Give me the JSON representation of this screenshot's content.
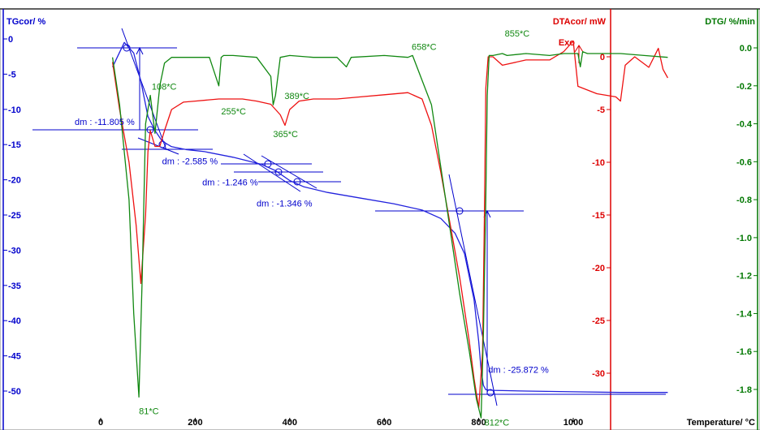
{
  "chart_data": {
    "type": "line",
    "x_axis": {
      "label": "Temperature/ °C",
      "range": [
        -100,
        1230
      ],
      "ticks": [
        0,
        200,
        400,
        600,
        800,
        1000
      ]
    },
    "axes": {
      "tg": {
        "label": "TGcor/ %",
        "color": "#0000cc",
        "range": [
          -53.5,
          3.5
        ],
        "ticks": [
          "0",
          "-5",
          "-10",
          "-15",
          "-20",
          "-25",
          "-30",
          "-35",
          "-40",
          "-45",
          "-50"
        ]
      },
      "dta": {
        "label": "DTAcor/ mW",
        "color": "#dd0000",
        "range": [
          -33.6,
          5.5
        ],
        "ticks": [
          "0",
          "-5",
          "-10",
          "-15",
          "-20",
          "-25",
          "-30"
        ]
      },
      "dtg": {
        "label": "DTG/ %/min",
        "color": "#007700",
        "range": [
          -1.98,
          0.13
        ],
        "ticks": [
          "0.0",
          "-0.2",
          "-0.4",
          "-0.6",
          "-0.8",
          "-1.0",
          "-1.2",
          "-1.4",
          "-1.6",
          "-1.8"
        ]
      }
    },
    "exo_label": "Exo",
    "series": [
      {
        "axis": "tg",
        "color": "#2222dd",
        "x": [
          25,
          50,
          70,
          85,
          100,
          115,
          130,
          150,
          180,
          220,
          280,
          340,
          370,
          400,
          430,
          480,
          550,
          620,
          680,
          720,
          750,
          770,
          790,
          800,
          805,
          810,
          815,
          830,
          900,
          1000,
          1100,
          1200
        ],
        "y": [
          -4,
          -0.5,
          -2,
          -6,
          -11,
          -13,
          -14.5,
          -15.3,
          -15.7,
          -16,
          -16.8,
          -17.8,
          -18.7,
          -20.1,
          -21,
          -21.8,
          -22.6,
          -23.4,
          -24.3,
          -25.5,
          -27.6,
          -30.5,
          -37,
          -43,
          -47,
          -49.2,
          -49.8,
          -49.9,
          -50,
          -50.1,
          -50.2,
          -50.2
        ]
      },
      {
        "axis": "dta",
        "color": "#ee1111",
        "x": [
          25,
          40,
          60,
          75,
          85,
          95,
          100,
          105,
          115,
          125,
          135,
          150,
          175,
          200,
          250,
          300,
          330,
          360,
          380,
          390,
          400,
          420,
          450,
          500,
          550,
          600,
          650,
          680,
          700,
          720,
          740,
          760,
          780,
          790,
          800,
          808,
          812,
          815,
          820,
          830,
          850,
          900,
          950,
          980,
          1000,
          1010,
          1050,
          1090,
          1100,
          1110,
          1130,
          1160,
          1180,
          1190,
          1200
        ],
        "y": [
          -0.5,
          -5,
          -10,
          -16,
          -21.5,
          -15,
          -9,
          -7,
          -8.5,
          -8.5,
          -7,
          -5,
          -4.3,
          -4.2,
          -4,
          -4,
          -4.2,
          -4.5,
          -5.5,
          -6.5,
          -5,
          -4.2,
          -4,
          -4,
          -3.8,
          -3.6,
          -3.4,
          -4,
          -6.5,
          -11,
          -16,
          -21,
          -27,
          -30.5,
          -33.3,
          -28,
          -15,
          -3,
          0,
          0,
          -0.8,
          -0.3,
          -0.3,
          0.5,
          1.5,
          -2.8,
          -3.5,
          -3.8,
          -4.2,
          -0.8,
          0,
          -1,
          0.8,
          -1.2,
          -2
        ]
      },
      {
        "axis": "dtg",
        "color": "#118811",
        "x": [
          25,
          40,
          60,
          70,
          81,
          88,
          95,
          105,
          115,
          125,
          135,
          150,
          180,
          230,
          250,
          255,
          260,
          280,
          330,
          360,
          365,
          370,
          380,
          400,
          450,
          500,
          520,
          530,
          600,
          650,
          660,
          700,
          730,
          760,
          780,
          795,
          805,
          810,
          815,
          818,
          822,
          830,
          850,
          860,
          900,
          950,
          980,
          1000,
          1010,
          1015,
          1020,
          1030,
          1100,
          1150,
          1200
        ],
        "y": [
          -0.05,
          -0.3,
          -0.8,
          -1.4,
          -1.84,
          -1.2,
          -0.4,
          -0.25,
          -0.45,
          -0.2,
          -0.08,
          -0.05,
          -0.05,
          -0.05,
          -0.2,
          -0.05,
          -0.04,
          -0.04,
          -0.05,
          -0.15,
          -0.3,
          -0.25,
          -0.05,
          -0.04,
          -0.05,
          -0.05,
          -0.1,
          -0.05,
          -0.04,
          -0.05,
          -0.04,
          -0.3,
          -0.8,
          -1.3,
          -1.6,
          -1.85,
          -1.95,
          -1.5,
          -0.8,
          -0.25,
          -0.04,
          -0.04,
          -0.03,
          -0.04,
          -0.03,
          -0.04,
          -0.03,
          -0.03,
          -0.03,
          -0.1,
          -0.02,
          -0.03,
          -0.03,
          -0.04,
          -0.05
        ]
      }
    ],
    "annotations": [
      {
        "text": "108*C",
        "x": 108,
        "y": -0.22,
        "axis": "dtg",
        "color": "#118811"
      },
      {
        "text": "255*C",
        "x": 255,
        "y": -0.35,
        "axis": "dtg",
        "color": "#118811"
      },
      {
        "text": "389*C",
        "x": 389,
        "y": -0.27,
        "axis": "dtg",
        "color": "#118811"
      },
      {
        "text": "365*C",
        "x": 365,
        "y": -0.47,
        "axis": "dtg",
        "color": "#118811"
      },
      {
        "text": "658*C",
        "x": 658,
        "y": -0.01,
        "axis": "dtg",
        "color": "#118811"
      },
      {
        "text": "855*C",
        "x": 855,
        "y": 0.06,
        "axis": "dtg",
        "color": "#118811"
      },
      {
        "text": "81*C",
        "x": 81,
        "y": -1.93,
        "axis": "dtg",
        "color": "#118811"
      },
      {
        "text": "812*C",
        "x": 812,
        "y": -1.99,
        "axis": "dtg",
        "color": "#118811"
      },
      {
        "text": "dm : -11.805 %",
        "x": -55,
        "y": -12.2,
        "axis": "tg",
        "color": "#0000cc"
      },
      {
        "text": "dm : -2.585 %",
        "x": 130,
        "y": -17.8,
        "axis": "tg",
        "color": "#0000cc"
      },
      {
        "text": "dm : -1.246 %",
        "x": 215,
        "y": -20.8,
        "axis": "tg",
        "color": "#0000cc"
      },
      {
        "text": "dm : -1.346 %",
        "x": 330,
        "y": -23.8,
        "axis": "tg",
        "color": "#0000cc"
      },
      {
        "text": "dm : -25.872 %",
        "x": 820,
        "y": -47.4,
        "axis": "tg",
        "color": "#0000cc"
      }
    ]
  }
}
